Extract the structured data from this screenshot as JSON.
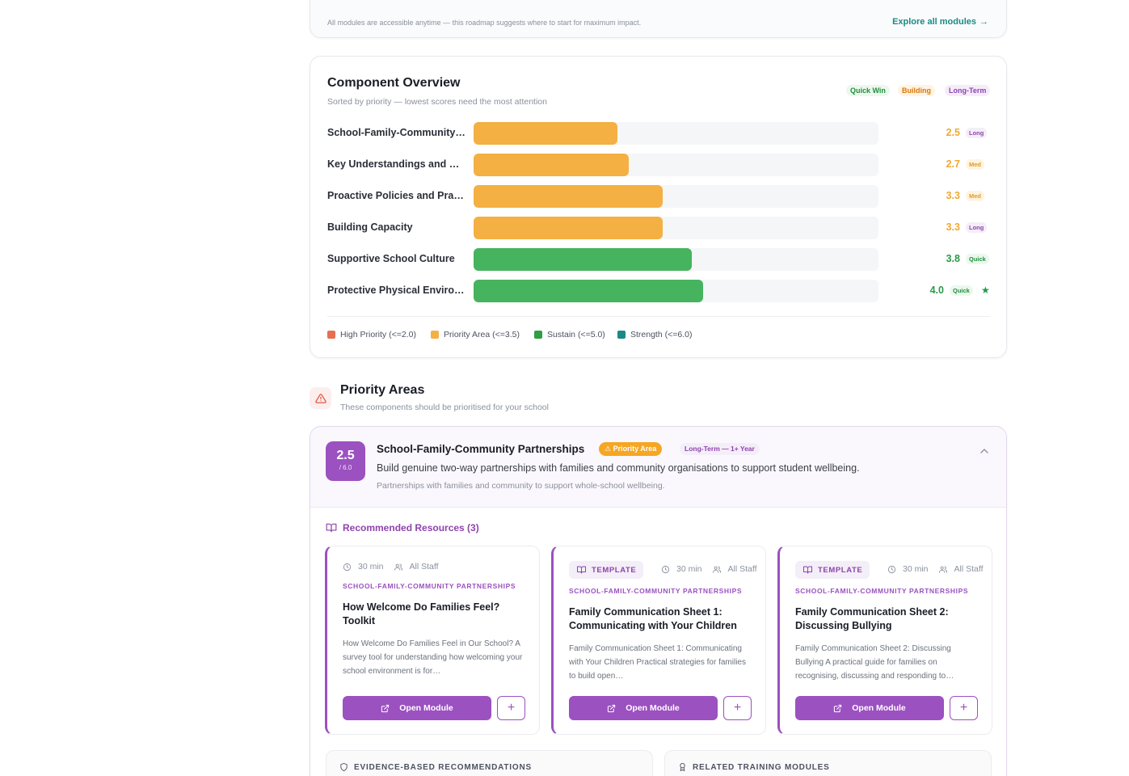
{
  "roadmap": {
    "note": "All modules are accessible anytime — this roadmap suggests where to start for maximum impact.",
    "explore_label": "Explore all modules",
    "explore_icon": "arrow-right-icon"
  },
  "overview": {
    "title": "Component Overview",
    "subtitle": "Sorted by priority — lowest scores need the most attention",
    "legend_chips": {
      "quick": "Quick Win",
      "building": "Building",
      "long": "Long-Term"
    },
    "legend": [
      {
        "label": "High Priority (<=2.0)",
        "color": "#e76f51"
      },
      {
        "label": "Priority Area (<=3.5)",
        "color": "#f4b042"
      },
      {
        "label": "Sustain (<=5.0)",
        "color": "#2f9e44"
      },
      {
        "label": "Strength (<=6.0)",
        "color": "#1a8a86"
      }
    ]
  },
  "chart_data": {
    "type": "bar",
    "orientation": "horizontal",
    "categories": [
      "School-Family-Community…",
      "Key Understandings and C…",
      "Proactive Policies and Pra…",
      "Building Capacity",
      "Supportive School Culture",
      "Protective Physical Enviro…"
    ],
    "values": [
      2.5,
      2.7,
      3.3,
      3.3,
      3.8,
      4.0
    ],
    "tags": [
      "Long",
      "Med",
      "Med",
      "Long",
      "Quick",
      "Quick"
    ],
    "starred": [
      false,
      false,
      false,
      false,
      false,
      true
    ],
    "xlim": [
      0,
      6
    ],
    "colors": {
      "priority": "#f4b042",
      "sustain": "#46b35e"
    }
  },
  "priority_areas": {
    "title": "Priority Areas",
    "subtitle": "These components should be prioritised for your school",
    "icon": "warning-triangle-icon"
  },
  "area": {
    "score": "2.5",
    "score_max": "/ 6.0",
    "title": "School-Family-Community Partnerships",
    "priority_badge": "Priority Area",
    "term_badge": "Long-Term — 1+ Year",
    "description": "Build genuine two-way partnerships with families and community organisations to support student wellbeing.",
    "note": "Partnerships with families and community to support whole-school wellbeing.",
    "resources_heading": "Recommended Resources (3)",
    "resources": [
      {
        "type": "",
        "duration": "30 min",
        "audience": "All Staff",
        "category": "SCHOOL-FAMILY-COMMUNITY PARTNERSHIPS",
        "title": "How Welcome Do Families Feel? Toolkit",
        "description": "How Welcome Do Families Feel in Our School? A survey tool for understanding how welcoming your school environment is for…",
        "open_label": "Open Module",
        "add_label": "+"
      },
      {
        "type": "TEMPLATE",
        "duration": "30 min",
        "audience": "All Staff",
        "category": "SCHOOL-FAMILY-COMMUNITY PARTNERSHIPS",
        "title": "Family Communication Sheet 1: Communicating with Your Children",
        "description": "Family Communication Sheet 1: Communicating with Your Children Practical strategies for families to build open…",
        "open_label": "Open Module",
        "add_label": "+"
      },
      {
        "type": "TEMPLATE",
        "duration": "30 min",
        "audience": "All Staff",
        "category": "SCHOOL-FAMILY-COMMUNITY PARTNERSHIPS",
        "title": "Family Communication Sheet 2: Discussing Bullying",
        "description": "Family Communication Sheet 2: Discussing Bullying A practical guide for families on recognising, discussing and responding to…",
        "open_label": "Open Module",
        "add_label": "+"
      }
    ],
    "evidence_label": "EVIDENCE-BASED RECOMMENDATIONS",
    "training_label": "RELATED TRAINING MODULES"
  }
}
